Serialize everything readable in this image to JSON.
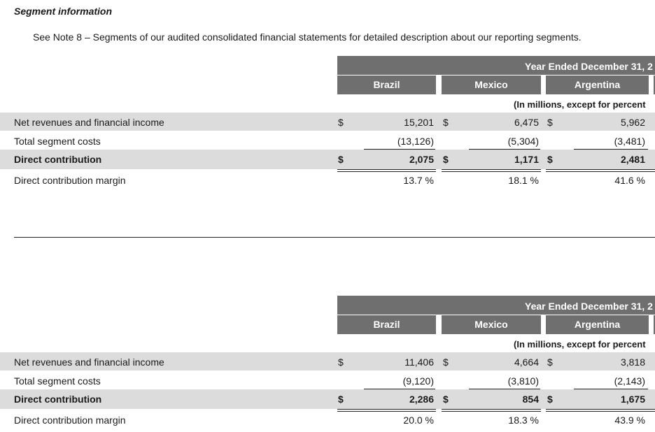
{
  "heading": "Segment information",
  "note": "See Note 8 – Segments of our audited consolidated financial statements for detailed description about our reporting segments.",
  "tables": [
    {
      "period_header": "Year Ended December 31, 2",
      "segments": [
        "Brazil",
        "Mexico",
        "Argentina"
      ],
      "unit_note": "(In millions, except for percent",
      "rows": [
        {
          "label": "Net revenues and financial income",
          "brazil": "15,201",
          "mexico": "6,475",
          "argentina": "5,962"
        },
        {
          "label": "Total segment costs",
          "brazil": "(13,126)",
          "mexico": "(5,304)",
          "argentina": "(3,481)"
        },
        {
          "label": "Direct contribution",
          "brazil": "2,075",
          "mexico": "1,171",
          "argentina": "2,481"
        },
        {
          "label": "Direct contribution margin",
          "brazil": "13.7 %",
          "mexico": "18.1 %",
          "argentina": "41.6 %"
        }
      ],
      "currency_symbol": "$"
    },
    {
      "period_header": "Year Ended December 31, 2",
      "segments": [
        "Brazil",
        "Mexico",
        "Argentina"
      ],
      "unit_note": "(In millions, except for percent",
      "rows": [
        {
          "label": "Net revenues and financial income",
          "brazil": "11,406",
          "mexico": "4,664",
          "argentina": "3,818"
        },
        {
          "label": "Total segment costs",
          "brazil": "(9,120)",
          "mexico": "(3,810)",
          "argentina": "(2,143)"
        },
        {
          "label": "Direct contribution",
          "brazil": "2,286",
          "mexico": "854",
          "argentina": "1,675"
        },
        {
          "label": "Direct contribution margin",
          "brazil": "20.0 %",
          "mexico": "18.3 %",
          "argentina": "43.9 %"
        }
      ],
      "currency_symbol": "$"
    }
  ],
  "colors": {
    "header_bg": "#6f6f6f",
    "row_shade": "#dcdcdc"
  }
}
